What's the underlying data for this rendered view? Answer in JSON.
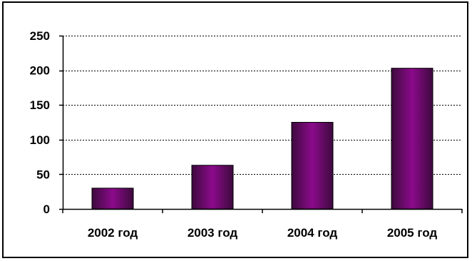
{
  "chart_data": {
    "type": "bar",
    "title": "",
    "xlabel": "",
    "ylabel": "",
    "categories": [
      "2002 год",
      "2003 год",
      "2004 год",
      "2005 год"
    ],
    "values": [
      30,
      63,
      125,
      203
    ],
    "ylim": [
      0,
      250
    ],
    "yticks": [
      0,
      50,
      100,
      150,
      200,
      250
    ],
    "ytick_labels": [
      "0",
      "50",
      "100",
      "150",
      "200",
      "250"
    ],
    "grid": "horizontal dashed",
    "legend": "none",
    "bar_color_center": "#8b0a8b",
    "bar_color_edge": "#3d0a3d",
    "grid_color": "#000000",
    "axis_color": "#000000"
  }
}
